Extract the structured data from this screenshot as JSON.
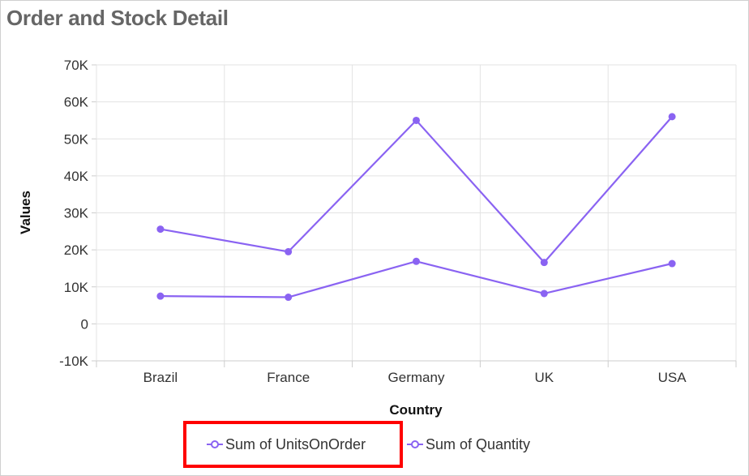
{
  "chart_data": {
    "type": "line",
    "title": "Order and Stock Detail",
    "xlabel": "Country",
    "ylabel": "Values",
    "categories": [
      "Brazil",
      "France",
      "Germany",
      "UK",
      "USA"
    ],
    "ylim": [
      -10000,
      70000
    ],
    "yticks": [
      -10000,
      0,
      10000,
      20000,
      30000,
      40000,
      50000,
      60000,
      70000
    ],
    "ytick_labels": [
      "-10K",
      "0",
      "10K",
      "20K",
      "30K",
      "40K",
      "50K",
      "60K",
      "70K"
    ],
    "grid": true,
    "legend_position": "bottom",
    "series": [
      {
        "name": "Sum of UnitsOnOrder",
        "values": [
          7500,
          7200,
          16900,
          8200,
          16300
        ],
        "color": "#8a63f2"
      },
      {
        "name": "Sum of Quantity",
        "values": [
          25600,
          19500,
          55000,
          16600,
          56000
        ],
        "color": "#8a63f2"
      }
    ]
  },
  "legend_highlight_color": "#ff0000"
}
